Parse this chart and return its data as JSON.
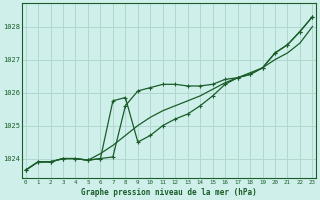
{
  "title": "Graphe pression niveau de la mer (hPa)",
  "background_color": "#cff0ea",
  "grid_color": "#b0d8ce",
  "line_color": "#1a5c2a",
  "x_ticks": [
    0,
    1,
    2,
    3,
    4,
    5,
    6,
    7,
    8,
    9,
    10,
    11,
    12,
    13,
    14,
    15,
    16,
    17,
    18,
    19,
    20,
    21,
    22,
    23
  ],
  "y_ticks": [
    1024,
    1025,
    1026,
    1027,
    1028
  ],
  "ylim": [
    1023.4,
    1028.7
  ],
  "xlim": [
    -0.3,
    23.3
  ],
  "series1_x": [
    0,
    1,
    2,
    3,
    4,
    5,
    6,
    7,
    8,
    9,
    10,
    11,
    12,
    13,
    14,
    15,
    16,
    17,
    18,
    19,
    20,
    21,
    22,
    23
  ],
  "series1_y": [
    1023.65,
    1023.9,
    1023.9,
    1024.0,
    1024.0,
    1023.95,
    1024.0,
    1024.05,
    1025.6,
    1026.05,
    1026.15,
    1026.25,
    1026.25,
    1026.2,
    1026.2,
    1026.25,
    1026.4,
    1026.45,
    1026.55,
    1026.75,
    1027.2,
    1027.45,
    1027.85,
    1028.3
  ],
  "series2_x": [
    0,
    1,
    2,
    3,
    4,
    5,
    6,
    7,
    8,
    9,
    10,
    11,
    12,
    13,
    14,
    15,
    16,
    17,
    18,
    19,
    20,
    21,
    22,
    23
  ],
  "series2_y": [
    1023.65,
    1023.9,
    1023.9,
    1024.0,
    1024.0,
    1023.95,
    1024.0,
    1025.75,
    1025.85,
    1024.5,
    1024.7,
    1025.0,
    1025.2,
    1025.35,
    1025.6,
    1025.9,
    1026.25,
    1026.45,
    1026.55,
    1026.75,
    1027.2,
    1027.45,
    1027.85,
    1028.3
  ],
  "series3_x": [
    0,
    1,
    2,
    3,
    4,
    5,
    6,
    7,
    8,
    9,
    10,
    11,
    12,
    13,
    14,
    15,
    16,
    17,
    18,
    19,
    20,
    21,
    22,
    23
  ],
  "series3_y": [
    1023.65,
    1023.9,
    1023.9,
    1024.0,
    1024.0,
    1023.95,
    1024.15,
    1024.4,
    1024.7,
    1025.0,
    1025.25,
    1025.45,
    1025.6,
    1025.75,
    1025.9,
    1026.1,
    1026.3,
    1026.45,
    1026.6,
    1026.75,
    1027.0,
    1027.2,
    1027.5,
    1028.0
  ]
}
